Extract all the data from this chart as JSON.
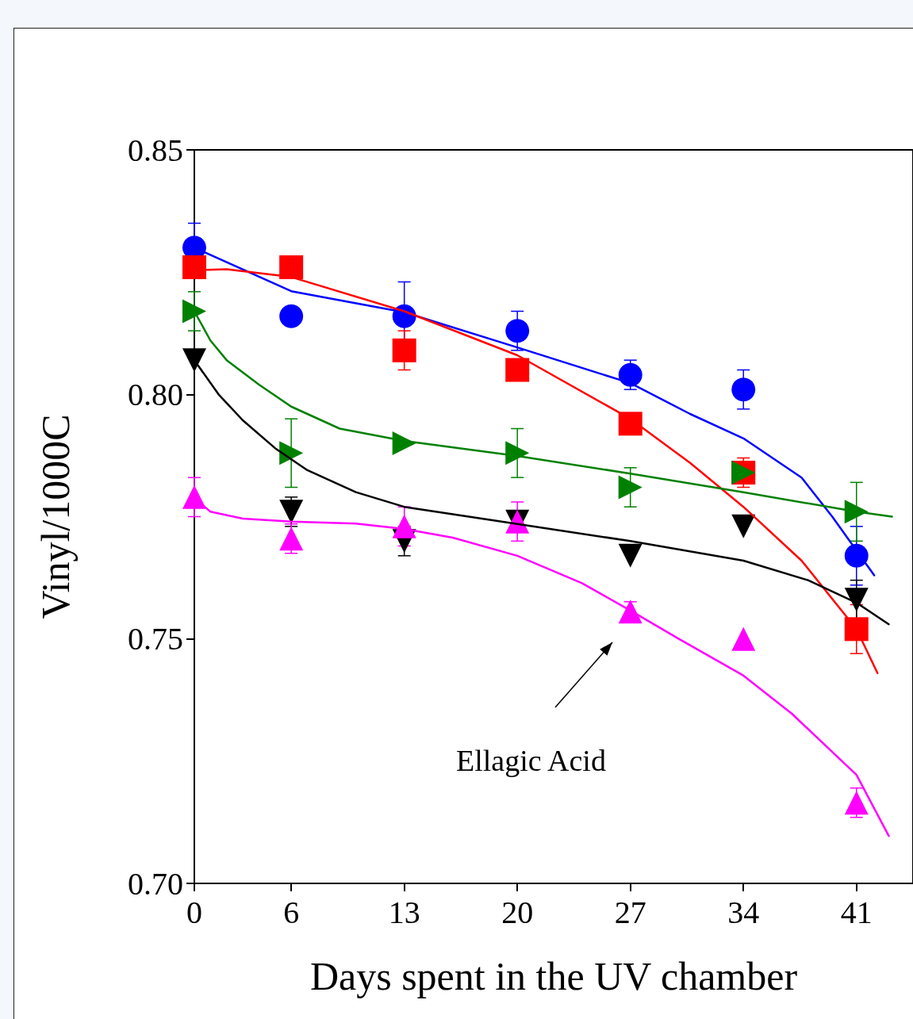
{
  "chart_data": {
    "type": "scatter",
    "xlabel": "Days spent in the UV chamber",
    "ylabel": "Vinyl/1000C",
    "xlim": [
      0,
      44.5
    ],
    "xticks": [
      0,
      6,
      13,
      20,
      27,
      34,
      41
    ],
    "ylim": [
      0.7,
      0.85
    ],
    "yticks": [
      {
        "value": 0.7,
        "label": "0.70"
      },
      {
        "value": 0.75,
        "label": "0.75"
      },
      {
        "value": 0.8,
        "label": "0.80"
      },
      {
        "value": 0.85,
        "label": "0.85"
      }
    ],
    "grid": false,
    "annotations": [
      "Ellagic Acid"
    ],
    "series": [
      {
        "marker": "circle",
        "color": "#0000ff",
        "x": [
          0,
          6,
          13,
          20,
          27,
          34,
          41
        ],
        "values": [
          0.83,
          0.816,
          0.816,
          0.813,
          0.804,
          0.801,
          0.767
        ],
        "errors": [
          0.005,
          null,
          0.007,
          0.004,
          0.003,
          0.004,
          0.006
        ]
      },
      {
        "marker": "square",
        "color": "#ff0000",
        "x": [
          0,
          6,
          13,
          20,
          27,
          34,
          41
        ],
        "values": [
          0.826,
          0.826,
          0.809,
          0.805,
          0.794,
          0.784,
          0.752
        ],
        "errors": [
          null,
          null,
          0.004,
          null,
          null,
          0.003,
          0.005
        ]
      },
      {
        "marker": "triangle-right",
        "color": "#008000",
        "x": [
          0,
          6,
          13,
          20,
          27,
          34,
          41
        ],
        "values": [
          0.817,
          0.788,
          0.79,
          0.788,
          0.781,
          0.784,
          0.776
        ],
        "errors": [
          0.004,
          0.007,
          null,
          0.005,
          0.004,
          null,
          0.006
        ]
      },
      {
        "marker": "triangle-down",
        "color": "#000000",
        "x": [
          0,
          6,
          13,
          20,
          27,
          34,
          41
        ],
        "values": [
          0.807,
          0.776,
          0.77,
          0.774,
          0.767,
          0.773,
          0.758
        ],
        "errors": [
          null,
          0.003,
          0.003,
          null,
          null,
          null,
          0.004
        ]
      },
      {
        "marker": "triangle",
        "color": "#ff00ff",
        "x": [
          0,
          6,
          13,
          20,
          27,
          34,
          41
        ],
        "values": [
          0.779,
          0.7705,
          0.773,
          0.774,
          0.7556,
          0.75,
          0.7165
        ],
        "errors": [
          0.004,
          0.003,
          0.004,
          0.004,
          0.002,
          null,
          0.003
        ]
      },
      {
        "type": "line",
        "marker": "none",
        "color": "#0000ff",
        "x": [
          0,
          6,
          13,
          20,
          27,
          30.7,
          34,
          37.6,
          39.5,
          42.1
        ],
        "values": [
          0.83,
          0.8211,
          0.8168,
          0.8096,
          0.8023,
          0.796,
          0.791,
          0.783,
          0.775,
          0.763
        ]
      },
      {
        "type": "line",
        "marker": "none",
        "color": "#ff0000",
        "x": [
          0,
          2,
          6,
          13,
          20,
          27,
          30.7,
          34,
          37.6,
          41,
          42.3
        ],
        "values": [
          0.8254,
          0.8256,
          0.824,
          0.817,
          0.808,
          0.795,
          0.786,
          0.777,
          0.766,
          0.752,
          0.743
        ]
      },
      {
        "type": "line",
        "marker": "none",
        "color": "#008000",
        "x": [
          0,
          1,
          2,
          4,
          6,
          9,
          13,
          20,
          27,
          34,
          41,
          43.2
        ],
        "values": [
          0.817,
          0.811,
          0.807,
          0.802,
          0.7975,
          0.793,
          0.7905,
          0.7874,
          0.7838,
          0.78,
          0.776,
          0.775
        ]
      },
      {
        "type": "line",
        "marker": "none",
        "color": "#000000",
        "x": [
          0,
          1.5,
          3,
          5,
          7,
          10,
          13,
          20,
          27,
          34,
          38,
          41,
          43
        ],
        "values": [
          0.807,
          0.8,
          0.7947,
          0.789,
          0.7845,
          0.78,
          0.777,
          0.7735,
          0.77,
          0.766,
          0.762,
          0.7574,
          0.753
        ]
      },
      {
        "type": "line",
        "marker": "none",
        "color": "#ff00ff",
        "x": [
          0,
          1,
          3,
          6,
          10,
          13,
          16,
          20,
          24,
          27,
          30,
          34,
          37,
          41,
          43
        ],
        "values": [
          0.7788,
          0.776,
          0.7746,
          0.774,
          0.7736,
          0.7725,
          0.7707,
          0.767,
          0.7614,
          0.7558,
          0.75,
          0.7425,
          0.7347,
          0.7222,
          0.7097
        ]
      }
    ]
  }
}
